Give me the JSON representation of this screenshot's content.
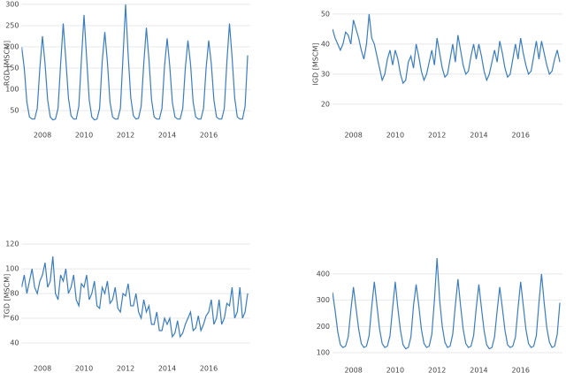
{
  "chart_data": [
    {
      "type": "line",
      "y_label": "RGD [MSCM]",
      "color": "#3a7dbf",
      "grid": true,
      "xlim": [
        2007,
        2018
      ],
      "xticks": [
        2008,
        2010,
        2012,
        2014,
        2016
      ],
      "ylim": [
        19,
        304
      ],
      "yticks": [
        50,
        100,
        150,
        200,
        250,
        300
      ],
      "x": [
        2007,
        2007.125,
        2007.25,
        2007.375,
        2007.5,
        2007.625,
        2007.75,
        2007.875,
        2008,
        2008.125,
        2008.25,
        2008.375,
        2008.5,
        2008.625,
        2008.75,
        2008.875,
        2009,
        2009.125,
        2009.25,
        2009.375,
        2009.5,
        2009.625,
        2009.75,
        2009.875,
        2010,
        2010.125,
        2010.25,
        2010.375,
        2010.5,
        2010.625,
        2010.75,
        2010.875,
        2011,
        2011.125,
        2011.25,
        2011.375,
        2011.5,
        2011.625,
        2011.75,
        2011.875,
        2012,
        2012.125,
        2012.25,
        2012.375,
        2012.5,
        2012.625,
        2012.75,
        2012.875,
        2013,
        2013.125,
        2013.25,
        2013.375,
        2013.5,
        2013.625,
        2013.75,
        2013.875,
        2014,
        2014.125,
        2014.25,
        2014.375,
        2014.5,
        2014.625,
        2014.75,
        2014.875,
        2015,
        2015.125,
        2015.25,
        2015.375,
        2015.5,
        2015.625,
        2015.75,
        2015.875,
        2016,
        2016.125,
        2016.25,
        2016.375,
        2016.5,
        2016.625,
        2016.75,
        2016.875,
        2017,
        2017.125,
        2017.25,
        2017.375,
        2017.5,
        2017.625,
        2017.75,
        2017.875
      ],
      "values": [
        200,
        150,
        70,
        35,
        30,
        30,
        55,
        150,
        225,
        160,
        75,
        35,
        28,
        30,
        55,
        160,
        255,
        170,
        80,
        38,
        30,
        30,
        60,
        170,
        275,
        175,
        75,
        35,
        28,
        30,
        55,
        165,
        235,
        165,
        70,
        35,
        30,
        30,
        55,
        175,
        300,
        180,
        80,
        38,
        30,
        32,
        60,
        160,
        245,
        170,
        75,
        35,
        30,
        30,
        55,
        155,
        220,
        155,
        70,
        35,
        30,
        30,
        55,
        150,
        215,
        160,
        70,
        35,
        30,
        30,
        55,
        150,
        215,
        160,
        75,
        35,
        30,
        30,
        55,
        165,
        255,
        175,
        80,
        35,
        30,
        30,
        60,
        180
      ]
    },
    {
      "type": "line",
      "y_label": "IGD [MSCM]",
      "color": "#3a7dbf",
      "grid": true,
      "xlim": [
        2007,
        2018
      ],
      "xticks": [
        2008,
        2010,
        2012,
        2014,
        2016
      ],
      "ylim": [
        13.5,
        53.2
      ],
      "yticks": [
        20,
        30,
        40,
        50
      ],
      "x": [
        2007,
        2007.125,
        2007.25,
        2007.375,
        2007.5,
        2007.625,
        2007.75,
        2007.875,
        2008,
        2008.125,
        2008.25,
        2008.375,
        2008.5,
        2008.625,
        2008.75,
        2008.875,
        2009,
        2009.125,
        2009.25,
        2009.375,
        2009.5,
        2009.625,
        2009.75,
        2009.875,
        2010,
        2010.125,
        2010.25,
        2010.375,
        2010.5,
        2010.625,
        2010.75,
        2010.875,
        2011,
        2011.125,
        2011.25,
        2011.375,
        2011.5,
        2011.625,
        2011.75,
        2011.875,
        2012,
        2012.125,
        2012.25,
        2012.375,
        2012.5,
        2012.625,
        2012.75,
        2012.875,
        2013,
        2013.125,
        2013.25,
        2013.375,
        2013.5,
        2013.625,
        2013.75,
        2013.875,
        2014,
        2014.125,
        2014.25,
        2014.375,
        2014.5,
        2014.625,
        2014.75,
        2014.875,
        2015,
        2015.125,
        2015.25,
        2015.375,
        2015.5,
        2015.625,
        2015.75,
        2015.875,
        2016,
        2016.125,
        2016.25,
        2016.375,
        2016.5,
        2016.625,
        2016.75,
        2016.875,
        2017,
        2017.125,
        2017.25,
        2017.375,
        2017.5,
        2017.625,
        2017.75,
        2017.875
      ],
      "values": [
        45,
        42,
        40,
        38,
        40,
        44,
        43,
        40,
        48,
        45,
        42,
        38,
        35,
        40,
        50,
        42,
        40,
        36,
        32,
        28,
        30,
        35,
        38,
        33,
        38,
        35,
        30,
        27,
        28,
        34,
        36,
        32,
        40,
        36,
        31,
        28,
        30,
        34,
        38,
        33,
        42,
        37,
        32,
        29,
        30,
        35,
        40,
        34,
        43,
        38,
        33,
        30,
        31,
        36,
        40,
        35,
        40,
        36,
        31,
        28,
        30,
        34,
        38,
        34,
        41,
        37,
        32,
        29,
        30,
        35,
        40,
        35,
        42,
        37,
        33,
        30,
        31,
        36,
        41,
        35,
        41,
        37,
        33,
        30,
        31,
        35,
        38,
        34
      ]
    },
    {
      "type": "line",
      "y_label": "TGD [MSCM]",
      "color": "#3a7dbf",
      "grid": true,
      "xlim": [
        2007,
        2018
      ],
      "xticks": [
        2008,
        2010,
        2012,
        2014,
        2016
      ],
      "ylim": [
        27.8,
        128
      ],
      "yticks": [
        40,
        60,
        80,
        100,
        120
      ],
      "x": [
        2007,
        2007.125,
        2007.25,
        2007.375,
        2007.5,
        2007.625,
        2007.75,
        2007.875,
        2008,
        2008.125,
        2008.25,
        2008.375,
        2008.5,
        2008.625,
        2008.75,
        2008.875,
        2009,
        2009.125,
        2009.25,
        2009.375,
        2009.5,
        2009.625,
        2009.75,
        2009.875,
        2010,
        2010.125,
        2010.25,
        2010.375,
        2010.5,
        2010.625,
        2010.75,
        2010.875,
        2011,
        2011.125,
        2011.25,
        2011.375,
        2011.5,
        2011.625,
        2011.75,
        2011.875,
        2012,
        2012.125,
        2012.25,
        2012.375,
        2012.5,
        2012.625,
        2012.75,
        2012.875,
        2013,
        2013.125,
        2013.25,
        2013.375,
        2013.5,
        2013.625,
        2013.75,
        2013.875,
        2014,
        2014.125,
        2014.25,
        2014.375,
        2014.5,
        2014.625,
        2014.75,
        2014.875,
        2015,
        2015.125,
        2015.25,
        2015.375,
        2015.5,
        2015.625,
        2015.75,
        2015.875,
        2016,
        2016.125,
        2016.25,
        2016.375,
        2016.5,
        2016.625,
        2016.75,
        2016.875,
        2017,
        2017.125,
        2017.25,
        2017.375,
        2017.5,
        2017.625,
        2017.75,
        2017.875
      ],
      "values": [
        85,
        95,
        80,
        90,
        100,
        85,
        80,
        90,
        95,
        105,
        85,
        90,
        110,
        80,
        75,
        95,
        90,
        100,
        80,
        85,
        95,
        75,
        70,
        88,
        85,
        95,
        75,
        80,
        90,
        70,
        68,
        85,
        80,
        90,
        72,
        75,
        85,
        68,
        65,
        80,
        78,
        88,
        70,
        70,
        80,
        65,
        60,
        75,
        65,
        70,
        55,
        55,
        65,
        50,
        50,
        60,
        55,
        60,
        45,
        48,
        58,
        45,
        48,
        55,
        60,
        65,
        50,
        52,
        62,
        50,
        55,
        62,
        65,
        75,
        55,
        60,
        75,
        55,
        60,
        72,
        70,
        85,
        60,
        65,
        85,
        60,
        65,
        80
      ]
    },
    {
      "type": "line",
      "color": "#3a7dbf",
      "grid": true,
      "xlim": [
        2007,
        2018
      ],
      "xticks": [
        2008,
        2010,
        2012,
        2014,
        2016
      ],
      "ylim": [
        80,
        467
      ],
      "yticks": [
        100,
        200,
        300,
        400
      ],
      "x": [
        2007,
        2007.125,
        2007.25,
        2007.375,
        2007.5,
        2007.625,
        2007.75,
        2007.875,
        2008,
        2008.125,
        2008.25,
        2008.375,
        2008.5,
        2008.625,
        2008.75,
        2008.875,
        2009,
        2009.125,
        2009.25,
        2009.375,
        2009.5,
        2009.625,
        2009.75,
        2009.875,
        2010,
        2010.125,
        2010.25,
        2010.375,
        2010.5,
        2010.625,
        2010.75,
        2010.875,
        2011,
        2011.125,
        2011.25,
        2011.375,
        2011.5,
        2011.625,
        2011.75,
        2011.875,
        2012,
        2012.125,
        2012.25,
        2012.375,
        2012.5,
        2012.625,
        2012.75,
        2012.875,
        2013,
        2013.125,
        2013.25,
        2013.375,
        2013.5,
        2013.625,
        2013.75,
        2013.875,
        2014,
        2014.125,
        2014.25,
        2014.375,
        2014.5,
        2014.625,
        2014.75,
        2014.875,
        2015,
        2015.125,
        2015.25,
        2015.375,
        2015.5,
        2015.625,
        2015.75,
        2015.875,
        2016,
        2016.125,
        2016.25,
        2016.375,
        2016.5,
        2016.625,
        2016.75,
        2016.875,
        2017,
        2017.125,
        2017.25,
        2017.375,
        2017.5,
        2017.625,
        2017.75,
        2017.875
      ],
      "values": [
        330,
        260,
        180,
        130,
        120,
        125,
        160,
        260,
        350,
        270,
        190,
        135,
        120,
        125,
        165,
        275,
        370,
        280,
        190,
        135,
        120,
        125,
        165,
        270,
        370,
        270,
        185,
        130,
        115,
        120,
        160,
        280,
        360,
        280,
        190,
        135,
        120,
        125,
        170,
        300,
        460,
        300,
        200,
        140,
        120,
        125,
        170,
        280,
        380,
        280,
        190,
        135,
        120,
        125,
        165,
        270,
        360,
        270,
        185,
        130,
        115,
        120,
        160,
        260,
        350,
        270,
        185,
        130,
        120,
        125,
        160,
        270,
        370,
        280,
        190,
        135,
        120,
        125,
        165,
        290,
        400,
        290,
        195,
        140,
        120,
        125,
        170,
        290
      ]
    }
  ]
}
